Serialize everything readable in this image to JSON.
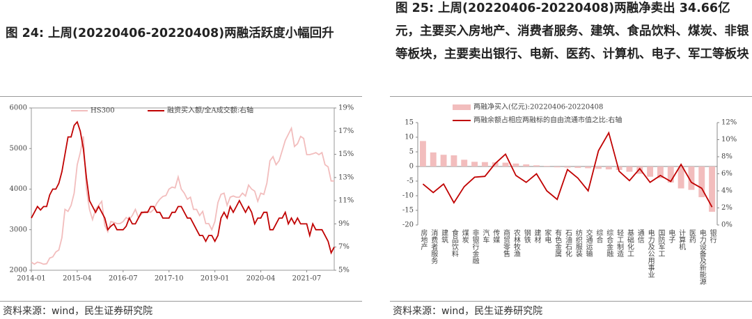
{
  "chart_data": [
    {
      "type": "line",
      "title": "图 24: 上周(20220406-20220408)两融活跃度小幅回升",
      "note": "资料来源：wind，民生证券研究院",
      "x": [
        "2014-01",
        "2014-02",
        "2014-03",
        "2014-04",
        "2014-05",
        "2014-06",
        "2014-07",
        "2014-08",
        "2014-09",
        "2014-10",
        "2014-11",
        "2014-12",
        "2015-01",
        "2015-02",
        "2015-03",
        "2015-04",
        "2015-05",
        "2015-06",
        "2015-07",
        "2015-08",
        "2015-09",
        "2015-10",
        "2015-11",
        "2015-12",
        "2016-01",
        "2016-02",
        "2016-03",
        "2016-04",
        "2016-05",
        "2016-06",
        "2016-07",
        "2016-08",
        "2016-09",
        "2016-10",
        "2016-11",
        "2016-12",
        "2017-01",
        "2017-02",
        "2017-03",
        "2017-04",
        "2017-05",
        "2017-06",
        "2017-07",
        "2017-08",
        "2017-09",
        "2017-10",
        "2017-11",
        "2017-12",
        "2018-01",
        "2018-02",
        "2018-03",
        "2018-04",
        "2018-05",
        "2018-06",
        "2018-07",
        "2018-08",
        "2018-09",
        "2018-10",
        "2018-11",
        "2018-12",
        "2019-01",
        "2019-02",
        "2019-03",
        "2019-04",
        "2019-05",
        "2019-06",
        "2019-07",
        "2019-08",
        "2019-09",
        "2019-10",
        "2019-11",
        "2019-12",
        "2020-01",
        "2020-02",
        "2020-03",
        "2020-04",
        "2020-05",
        "2020-06",
        "2020-07",
        "2020-08",
        "2020-09",
        "2020-10",
        "2020-11",
        "2020-12",
        "2021-01",
        "2021-02",
        "2021-03",
        "2021-04",
        "2021-05",
        "2021-06",
        "2021-07",
        "2021-08",
        "2021-09",
        "2021-10",
        "2021-11",
        "2021-12",
        "2022-01",
        "2022-02",
        "2022-03",
        "2022-04"
      ],
      "xlim": [
        "2014-01",
        "2022-04"
      ],
      "xticks": [
        "2014-01",
        "2015-04",
        "2016-07",
        "2017-10",
        "2019-01",
        "2020-04",
        "2021-07"
      ],
      "ylim": [
        2000,
        6000
      ],
      "yticks": [
        2000,
        3000,
        4000,
        5000,
        6000
      ],
      "y2lim": [
        5,
        19
      ],
      "y2ticks": [
        {
          "value": 5,
          "label": "5%"
        },
        {
          "value": 7,
          "label": "7%"
        },
        {
          "value": 9,
          "label": "9%"
        },
        {
          "value": 11,
          "label": "11%"
        },
        {
          "value": 13,
          "label": "13%"
        },
        {
          "value": 15,
          "label": "15%"
        },
        {
          "value": 17,
          "label": "17%"
        },
        {
          "value": 19,
          "label": "19%"
        }
      ],
      "series": [
        {
          "name": "HS300",
          "color": "#f2bdbd",
          "values": [
            2200,
            2150,
            2200,
            2180,
            2150,
            2160,
            2300,
            2330,
            2450,
            2500,
            2800,
            3500,
            3450,
            3600,
            3900,
            4600,
            4900,
            5300,
            4000,
            3500,
            3250,
            3500,
            3600,
            3700,
            3100,
            2950,
            3200,
            3180,
            3150,
            3150,
            3200,
            3300,
            3250,
            3350,
            3500,
            3300,
            3380,
            3450,
            3450,
            3430,
            3500,
            3650,
            3750,
            3820,
            3840,
            4000,
            4050,
            4030,
            4300,
            4000,
            3900,
            3750,
            3800,
            3500,
            3500,
            3350,
            3450,
            3150,
            3150,
            3000,
            3200,
            3670,
            3870,
            3900,
            3600,
            3800,
            3830,
            3800,
            3800,
            3900,
            3830,
            4100,
            4000,
            3950,
            3700,
            3900,
            3870,
            4150,
            4700,
            4800,
            4600,
            4700,
            4950,
            5200,
            5350,
            5500,
            5050,
            5120,
            5300,
            5250,
            4850,
            4850,
            4870,
            4900,
            4850,
            4900,
            4600,
            4550,
            4200,
            4200
          ]
        },
        {
          "name": "融资买入额/全A成交额:右轴",
          "color": "#c00000",
          "axis": "y2",
          "values": [
            9.5,
            10,
            10.5,
            10.2,
            10.5,
            10.5,
            11.5,
            12,
            12,
            12.5,
            13.5,
            15,
            16.5,
            16.5,
            17.5,
            17.8,
            17,
            15.5,
            13,
            11,
            10.5,
            10,
            10.5,
            10,
            9.5,
            8.5,
            8.8,
            9,
            8.5,
            8.5,
            8.5,
            8.8,
            9.5,
            9,
            9,
            9.5,
            10,
            10,
            10,
            10.5,
            10.5,
            10,
            10,
            9.5,
            9.5,
            9.5,
            10,
            10,
            10.5,
            10.5,
            10,
            9.5,
            9.5,
            9,
            8.5,
            8,
            8,
            7.5,
            8,
            8,
            7.5,
            8,
            9.5,
            10,
            9.5,
            10.5,
            10,
            10.5,
            11,
            10.5,
            10,
            10.5,
            10,
            9,
            9.5,
            9.5,
            10,
            10,
            8.5,
            8.5,
            9,
            9.5,
            9.5,
            10,
            9,
            9.5,
            9,
            9.5,
            9,
            9,
            9,
            8,
            9,
            8.5,
            8.5,
            8.5,
            8,
            7.5,
            6.5,
            7
          ]
        }
      ]
    },
    {
      "type": "bar",
      "title": "图 25: 上周(20220406-20220408)两融净卖出 34.66亿元，主要买入房地产、消费者服务、建筑、食品饮料、煤炭、非银等板块，主要卖出银行、电新、医药、计算机、电子、军工等板块",
      "note": "资料来源：wind，民生证券研究院",
      "categories": [
        "房地产",
        "消费者服务",
        "建筑",
        "食品饮料",
        "煤炭",
        "非银行金融",
        "汽车",
        "传媒",
        "商贸零售",
        "农林牧渔",
        "钢铁",
        "建材",
        "家电",
        "有色金属",
        "石油石化",
        "纺织服装",
        "交通运输",
        "综合",
        "综合金融",
        "轻工制造",
        "基础化工",
        "通信",
        "电力及公用事业",
        "国防军工",
        "电子",
        "计算机",
        "医药",
        "电力设备及新能源",
        "银行"
      ],
      "ylim": [
        -20,
        15
      ],
      "yticks": [
        -20,
        -15,
        -10,
        -5,
        0,
        5,
        10,
        15
      ],
      "y2lim": [
        0,
        12
      ],
      "y2ticks": [
        {
          "value": 0,
          "label": "0%"
        },
        {
          "value": 2,
          "label": "2%"
        },
        {
          "value": 4,
          "label": "4%"
        },
        {
          "value": 6,
          "label": "6%"
        },
        {
          "value": 8,
          "label": "8%"
        },
        {
          "value": 10,
          "label": "10%"
        },
        {
          "value": 12,
          "label": "12%"
        }
      ],
      "series": [
        {
          "name": "两融净买入(亿元):20220406-20220408",
          "color": "#f2bdbd",
          "values": [
            8.7,
            4.8,
            4.0,
            3.8,
            2.3,
            1.6,
            1.5,
            1.4,
            1.3,
            1.0,
            0.7,
            0.4,
            0.2,
            -0.3,
            -0.4,
            -0.5,
            -0.6,
            -0.8,
            -1.0,
            -1.2,
            -1.8,
            -2.5,
            -3.5,
            -4.0,
            -5.5,
            -7.5,
            -8.0,
            -10.5,
            -15.5
          ]
        },
        {
          "name": "两融余额占相应两融标的自由流通市值之比:右轴",
          "color": "#c00000",
          "axis": "y2",
          "values": [
            4.8,
            3.8,
            4.8,
            2.6,
            4.5,
            5.6,
            5.7,
            7.2,
            8.3,
            5.8,
            5.0,
            6.0,
            4.0,
            3.0,
            6.5,
            5.5,
            4.0,
            8.7,
            10.8,
            6.3,
            5.2,
            6.6,
            5.0,
            5.8,
            5.1,
            7.1,
            5.0,
            4.3,
            2.1
          ]
        }
      ]
    }
  ]
}
